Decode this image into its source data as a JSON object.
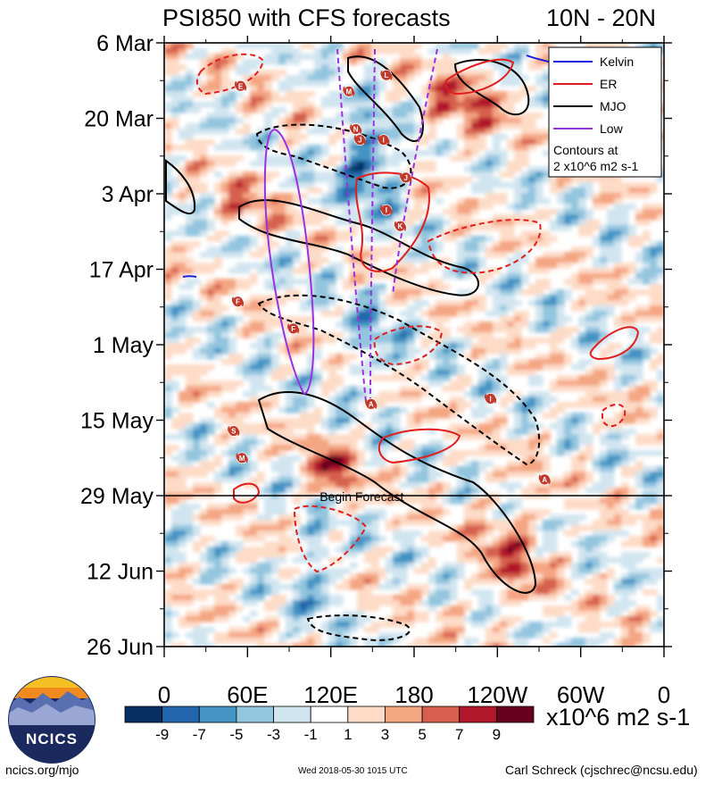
{
  "chart_data": {
    "type": "heatmap",
    "title_left": "PSI850 with CFS forecasts",
    "title_right": "10N - 20N",
    "x_ticks": [
      "0",
      "60E",
      "120E",
      "180",
      "120W",
      "60W",
      "0"
    ],
    "x_tick_values": [
      0,
      60,
      120,
      180,
      240,
      300,
      360
    ],
    "y_ticks": [
      "6 Mar",
      "20 Mar",
      "3 Apr",
      "17 Apr",
      "1 May",
      "15 May",
      "29 May",
      "12 Jun",
      "26 Jun"
    ],
    "y_tick_days": [
      0,
      14,
      28,
      42,
      56,
      70,
      84,
      98,
      112
    ],
    "forecast_start_day": 84,
    "forecast_label": "Begin Forecast",
    "colorbar": {
      "labels": [
        "-9",
        "-7",
        "-5",
        "-3",
        "-1",
        "1",
        "3",
        "5",
        "7",
        "9"
      ],
      "colors": [
        "#053061",
        "#2166ac",
        "#4393c3",
        "#92c5de",
        "#d1e5f0",
        "#ffffff",
        "#fddbc7",
        "#f4a582",
        "#d6604d",
        "#b2182b",
        "#67001f"
      ],
      "units": "x10^6 m2 s-1"
    },
    "legend": {
      "items": [
        {
          "label": "Kelvin",
          "color": "#1a1adf"
        },
        {
          "label": "ER",
          "color": "#e11d1d"
        },
        {
          "label": "MJO",
          "color": "#000000"
        },
        {
          "label": "Low",
          "color": "#9b30e0"
        }
      ],
      "note_line1": "Contours at",
      "note_line2": "2 x10^6 m2 s-1"
    },
    "tropical_cyclones": [
      {
        "label": "E",
        "lon": 55,
        "day": 8
      },
      {
        "label": "M",
        "lon": 133,
        "day": 9
      },
      {
        "label": "L",
        "lon": 160,
        "day": 6
      },
      {
        "label": "N",
        "lon": 138,
        "day": 16
      },
      {
        "label": "J",
        "lon": 141,
        "day": 18
      },
      {
        "label": "I",
        "lon": 158,
        "day": 18
      },
      {
        "label": "J",
        "lon": 174,
        "day": 25
      },
      {
        "label": "I",
        "lon": 160,
        "day": 31
      },
      {
        "label": "K",
        "lon": 170,
        "day": 34
      },
      {
        "label": "F",
        "lon": 53,
        "day": 48
      },
      {
        "label": "F",
        "lon": 93,
        "day": 53
      },
      {
        "label": "A",
        "lon": 149,
        "day": 67
      },
      {
        "label": "I",
        "lon": 235,
        "day": 66
      },
      {
        "label": "S",
        "lon": 50,
        "day": 72
      },
      {
        "label": "M",
        "lon": 56,
        "day": 77
      },
      {
        "label": "A",
        "lon": 274,
        "day": 81
      }
    ]
  },
  "branding": {
    "logo_text": "NCICS",
    "site": "ncics.org/mjo",
    "timestamp": "Wed 2018-05-30 1015 UTC",
    "author": "Carl Schreck (cjschrec@ncsu.edu)"
  }
}
